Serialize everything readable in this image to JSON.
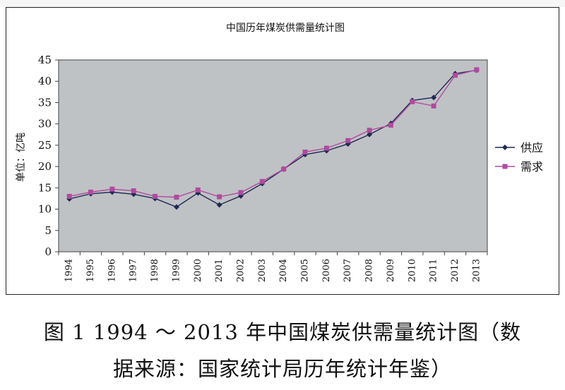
{
  "chart_data": {
    "type": "line",
    "title": "中国历年煤炭供需量统计图",
    "ylabel": "单位：亿吨",
    "xlabel": "",
    "ylim": [
      0,
      45
    ],
    "yticks": [
      0,
      5,
      10,
      15,
      20,
      25,
      30,
      35,
      40,
      45
    ],
    "categories": [
      "1994",
      "1995",
      "1996",
      "1997",
      "1998",
      "1999",
      "2000",
      "2001",
      "2002",
      "2003",
      "2004",
      "2005",
      "2006",
      "2007",
      "2008",
      "2009",
      "2010",
      "2011",
      "2012",
      "2013"
    ],
    "series": [
      {
        "name": "供应",
        "marker": "diamond",
        "color": "#1f2a55",
        "values": [
          12.4,
          13.6,
          14.0,
          13.5,
          12.5,
          10.5,
          13.8,
          11.0,
          13.1,
          16.0,
          19.4,
          22.8,
          23.7,
          25.3,
          27.5,
          30.1,
          35.5,
          36.2,
          41.8,
          42.6
        ]
      },
      {
        "name": "需求",
        "marker": "square",
        "color": "#b04aa0",
        "values": [
          13.0,
          14.0,
          14.7,
          14.3,
          13.0,
          12.8,
          14.5,
          12.9,
          13.9,
          16.5,
          19.4,
          23.4,
          24.3,
          26.1,
          28.5,
          29.7,
          35.2,
          34.2,
          41.4,
          42.7
        ]
      }
    ],
    "grid": false,
    "legend": "right",
    "plot_bg": "#bfc2c4"
  },
  "caption": {
    "line1": "图 1  1994 ～ 2013 年中国煤炭供需量统计图（数",
    "line2": "据来源：国家统计局历年统计年鉴）"
  }
}
